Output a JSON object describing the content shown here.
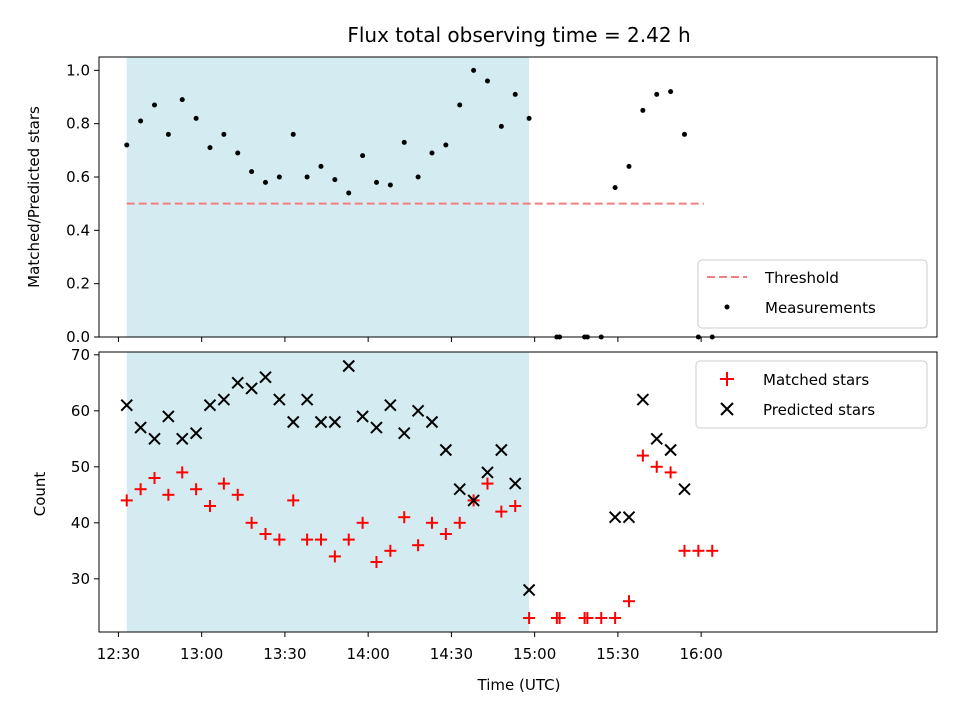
{
  "chart_data": [
    {
      "type": "scatter",
      "title": "Flux total observing time = 2.42 h",
      "xlabel": "",
      "ylabel": "Matched/Predicted stars",
      "ylim": [
        0,
        1.05
      ],
      "xlim_minutes_from_1230": [
        -7,
        295
      ],
      "yticks": [
        0.0,
        0.2,
        0.4,
        0.6,
        0.8,
        1.0
      ],
      "ytick_labels": [
        "0.0",
        "0.2",
        "0.4",
        "0.6",
        "0.8",
        "1.0"
      ],
      "shaded_region": {
        "from": "12:33",
        "to": "14:58",
        "color": "#d4ebf2"
      },
      "legend": {
        "placement": "lower-right",
        "entries": [
          "Threshold",
          "Measurements"
        ]
      },
      "threshold": {
        "name": "Threshold",
        "value": 0.5,
        "from": "12:33",
        "to": "16:01",
        "color": "#f08080"
      },
      "measurements": {
        "name": "Measurements",
        "color": "#000000",
        "x": [
          "12:33",
          "12:38",
          "12:43",
          "12:48",
          "12:53",
          "12:58",
          "13:03",
          "13:08",
          "13:13",
          "13:18",
          "13:23",
          "13:28",
          "13:33",
          "13:38",
          "13:43",
          "13:48",
          "13:53",
          "13:58",
          "14:03",
          "14:08",
          "14:13",
          "14:18",
          "14:23",
          "14:28",
          "14:33",
          "14:38",
          "14:43",
          "14:48",
          "14:53",
          "14:58",
          "15:08",
          "15:09",
          "15:18",
          "15:19",
          "15:24",
          "15:29",
          "15:34",
          "15:39",
          "15:44",
          "15:49",
          "15:54",
          "15:59",
          "16:04"
        ],
        "y": [
          0.72,
          0.81,
          0.87,
          0.76,
          0.89,
          0.82,
          0.71,
          0.76,
          0.69,
          0.62,
          0.58,
          0.6,
          0.76,
          0.6,
          0.64,
          0.59,
          0.54,
          0.68,
          0.58,
          0.57,
          0.73,
          0.6,
          0.69,
          0.72,
          0.87,
          1.0,
          0.96,
          0.79,
          0.91,
          0.82,
          0.0,
          0.0,
          0.0,
          0.0,
          0.0,
          0.56,
          0.64,
          0.85,
          0.91,
          0.92,
          0.76,
          0.0,
          0.0
        ]
      }
    },
    {
      "type": "scatter",
      "title": "",
      "xlabel": "Time (UTC)",
      "ylabel": "Count",
      "ylim": [
        20.5,
        70.5
      ],
      "xlim_minutes_from_1230": [
        -7,
        295
      ],
      "yticks": [
        30,
        40,
        50,
        60,
        70
      ],
      "ytick_labels": [
        "30",
        "40",
        "50",
        "60",
        "70"
      ],
      "xtick_labels": [
        "12:30",
        "13:00",
        "13:30",
        "14:00",
        "14:30",
        "15:00",
        "15:30",
        "16:00"
      ],
      "shaded_region": {
        "from": "12:33",
        "to": "14:58",
        "color": "#d4ebf2"
      },
      "legend": {
        "placement": "upper-right",
        "entries": [
          "Matched stars",
          "Predicted stars"
        ]
      },
      "series": [
        {
          "name": "Matched stars",
          "marker": "plus",
          "color": "#ff0000",
          "x": [
            "12:33",
            "12:38",
            "12:43",
            "12:48",
            "12:53",
            "12:58",
            "13:03",
            "13:08",
            "13:13",
            "13:18",
            "13:23",
            "13:28",
            "13:33",
            "13:38",
            "13:43",
            "13:48",
            "13:53",
            "13:58",
            "14:03",
            "14:08",
            "14:13",
            "14:18",
            "14:23",
            "14:28",
            "14:33",
            "14:38",
            "14:43",
            "14:48",
            "14:53",
            "14:58",
            "15:08",
            "15:09",
            "15:18",
            "15:19",
            "15:24",
            "15:29",
            "15:34",
            "15:39",
            "15:44",
            "15:49",
            "15:54",
            "15:59",
            "16:04"
          ],
          "values": [
            44,
            46,
            48,
            45,
            49,
            46,
            43,
            47,
            45,
            40,
            38,
            37,
            44,
            37,
            37,
            34,
            37,
            40,
            33,
            35,
            41,
            36,
            40,
            38,
            40,
            44,
            47,
            42,
            43,
            23,
            23,
            23,
            23,
            23,
            23,
            23,
            26,
            52,
            50,
            49,
            35,
            35,
            35
          ]
        },
        {
          "name": "Predicted stars",
          "marker": "x",
          "color": "#000000",
          "x": [
            "12:33",
            "12:38",
            "12:43",
            "12:48",
            "12:53",
            "12:58",
            "13:03",
            "13:08",
            "13:13",
            "13:18",
            "13:23",
            "13:28",
            "13:33",
            "13:38",
            "13:43",
            "13:48",
            "13:53",
            "13:58",
            "14:03",
            "14:08",
            "14:13",
            "14:18",
            "14:23",
            "14:28",
            "14:33",
            "14:38",
            "14:43",
            "14:48",
            "14:53",
            "14:58",
            "15:29",
            "15:34",
            "15:39",
            "15:44",
            "15:49",
            "15:54"
          ],
          "values": [
            61,
            57,
            55,
            59,
            55,
            56,
            61,
            62,
            65,
            64,
            66,
            62,
            58,
            62,
            58,
            58,
            68,
            59,
            57,
            61,
            56,
            60,
            58,
            53,
            46,
            44,
            49,
            53,
            47,
            28,
            41,
            41,
            62,
            55,
            53,
            46
          ]
        }
      ]
    }
  ]
}
